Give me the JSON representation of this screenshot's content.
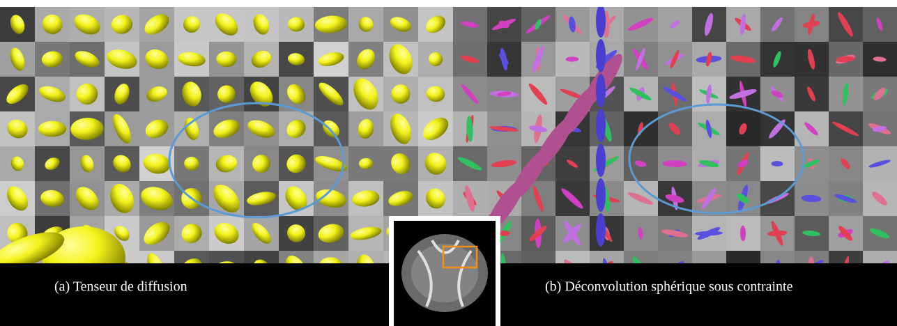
{
  "figure": {
    "captions": [
      "(a) Tenseur de diffusion",
      "(b) Déconvolution sphérique sous contrainte"
    ]
  }
}
